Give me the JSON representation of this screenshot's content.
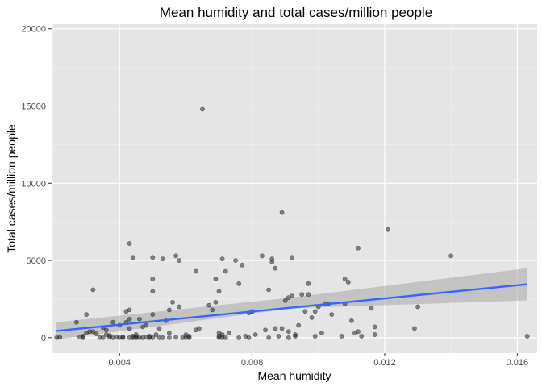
{
  "chart_data": {
    "type": "scatter",
    "title": "Mean humidity and total cases/million people",
    "xlabel": "Mean humidity",
    "ylabel": "Total cases/million people",
    "xlim": [
      0.00195,
      0.0166
    ],
    "ylim": [
      -1000,
      20300
    ],
    "xticks": [
      0.004,
      0.008,
      0.012,
      0.016
    ],
    "xtick_labels": [
      "0.004",
      "0.008",
      "0.012",
      "0.016"
    ],
    "yticks": [
      0,
      5000,
      10000,
      15000,
      20000
    ],
    "ytick_labels": [
      "0",
      "5000",
      "10000",
      "15000",
      "20000"
    ],
    "grid": true,
    "background": "#e5e5e5",
    "point_color": "#1a1a1a",
    "trend_color": "#3366ff",
    "band_color": "#999999",
    "points": [
      [
        0.0021,
        0
      ],
      [
        0.0022,
        20
      ],
      [
        0.0027,
        1000
      ],
      [
        0.0028,
        40
      ],
      [
        0.0029,
        100
      ],
      [
        0.0029,
        0
      ],
      [
        0.003,
        1500
      ],
      [
        0.003,
        300
      ],
      [
        0.0031,
        400
      ],
      [
        0.0032,
        3100
      ],
      [
        0.0032,
        400
      ],
      [
        0.0033,
        250
      ],
      [
        0.0034,
        10
      ],
      [
        0.0035,
        650
      ],
      [
        0.0035,
        0
      ],
      [
        0.0036,
        500
      ],
      [
        0.0036,
        200
      ],
      [
        0.0037,
        150
      ],
      [
        0.0037,
        20
      ],
      [
        0.0038,
        0
      ],
      [
        0.0038,
        1000
      ],
      [
        0.0039,
        30
      ],
      [
        0.004,
        0
      ],
      [
        0.004,
        800
      ],
      [
        0.0041,
        50
      ],
      [
        0.0041,
        0
      ],
      [
        0.0042,
        1700
      ],
      [
        0.0042,
        1000
      ],
      [
        0.0043,
        6100
      ],
      [
        0.0043,
        1800
      ],
      [
        0.0043,
        1200
      ],
      [
        0.0043,
        600
      ],
      [
        0.0043,
        0
      ],
      [
        0.0044,
        5200
      ],
      [
        0.0044,
        0
      ],
      [
        0.0044,
        100
      ],
      [
        0.0045,
        20
      ],
      [
        0.0045,
        200
      ],
      [
        0.0045,
        0
      ],
      [
        0.0046,
        1200
      ],
      [
        0.0046,
        0
      ],
      [
        0.0047,
        0
      ],
      [
        0.0047,
        700
      ],
      [
        0.0048,
        800
      ],
      [
        0.0048,
        50
      ],
      [
        0.0049,
        100
      ],
      [
        0.0049,
        0
      ],
      [
        0.005,
        5200
      ],
      [
        0.005,
        3800
      ],
      [
        0.005,
        3000
      ],
      [
        0.005,
        1500
      ],
      [
        0.005,
        0
      ],
      [
        0.0051,
        200
      ],
      [
        0.0052,
        600
      ],
      [
        0.0052,
        0
      ],
      [
        0.0053,
        5100
      ],
      [
        0.0053,
        0
      ],
      [
        0.0054,
        1100
      ],
      [
        0.0055,
        300
      ],
      [
        0.0055,
        1800
      ],
      [
        0.0055,
        0
      ],
      [
        0.0056,
        2300
      ],
      [
        0.0057,
        20
      ],
      [
        0.0057,
        5300
      ],
      [
        0.0058,
        5000
      ],
      [
        0.0058,
        2000
      ],
      [
        0.0059,
        0
      ],
      [
        0.006,
        200
      ],
      [
        0.006,
        0
      ],
      [
        0.0061,
        0
      ],
      [
        0.0061,
        100
      ],
      [
        0.0063,
        4300
      ],
      [
        0.0063,
        500
      ],
      [
        0.0064,
        600
      ],
      [
        0.0065,
        14800
      ],
      [
        0.0067,
        2100
      ],
      [
        0.0068,
        1800
      ],
      [
        0.0069,
        2300
      ],
      [
        0.0069,
        3800
      ],
      [
        0.007,
        3000
      ],
      [
        0.007,
        300
      ],
      [
        0.007,
        100
      ],
      [
        0.007,
        0
      ],
      [
        0.0071,
        5100
      ],
      [
        0.0071,
        200
      ],
      [
        0.0071,
        0
      ],
      [
        0.0072,
        4300
      ],
      [
        0.0072,
        0
      ],
      [
        0.0073,
        300
      ],
      [
        0.0075,
        5000
      ],
      [
        0.0076,
        3500
      ],
      [
        0.0076,
        0
      ],
      [
        0.0077,
        4700
      ],
      [
        0.0078,
        100
      ],
      [
        0.0079,
        1600
      ],
      [
        0.0079,
        0
      ],
      [
        0.008,
        1700
      ],
      [
        0.0081,
        200
      ],
      [
        0.0083,
        5300
      ],
      [
        0.0084,
        500
      ],
      [
        0.0085,
        0
      ],
      [
        0.0085,
        3100
      ],
      [
        0.0086,
        4900
      ],
      [
        0.0086,
        5100
      ],
      [
        0.0087,
        4500
      ],
      [
        0.0087,
        600
      ],
      [
        0.0088,
        100
      ],
      [
        0.0089,
        8100
      ],
      [
        0.0089,
        600
      ],
      [
        0.009,
        2400
      ],
      [
        0.0091,
        2600
      ],
      [
        0.0091,
        400
      ],
      [
        0.0091,
        0
      ],
      [
        0.0092,
        5200
      ],
      [
        0.0092,
        2700
      ],
      [
        0.0093,
        200
      ],
      [
        0.0093,
        100
      ],
      [
        0.0094,
        800
      ],
      [
        0.0095,
        2800
      ],
      [
        0.0096,
        1700
      ],
      [
        0.0097,
        2800
      ],
      [
        0.0097,
        3500
      ],
      [
        0.0098,
        1300
      ],
      [
        0.0099,
        1700
      ],
      [
        0.0099,
        100
      ],
      [
        0.01,
        2000
      ],
      [
        0.0101,
        300
      ],
      [
        0.0102,
        2200
      ],
      [
        0.0103,
        2200
      ],
      [
        0.0104,
        1500
      ],
      [
        0.0107,
        100
      ],
      [
        0.0108,
        3800
      ],
      [
        0.0108,
        2200
      ],
      [
        0.0109,
        3600
      ],
      [
        0.011,
        1100
      ],
      [
        0.0111,
        300
      ],
      [
        0.0112,
        5800
      ],
      [
        0.0112,
        400
      ],
      [
        0.0113,
        100
      ],
      [
        0.0116,
        1900
      ],
      [
        0.0117,
        700
      ],
      [
        0.0117,
        200
      ],
      [
        0.0121,
        7000
      ],
      [
        0.0129,
        600
      ],
      [
        0.013,
        2000
      ],
      [
        0.014,
        5300
      ],
      [
        0.0163,
        100
      ]
    ],
    "trend": {
      "x": [
        0.0021,
        0.0163
      ],
      "y": [
        440,
        3460
      ]
    },
    "band": {
      "x": [
        0.0021,
        0.0092,
        0.0163
      ],
      "upper": [
        1000,
        2600,
        4500
      ],
      "lower": [
        -120,
        1900,
        2420
      ]
    }
  }
}
